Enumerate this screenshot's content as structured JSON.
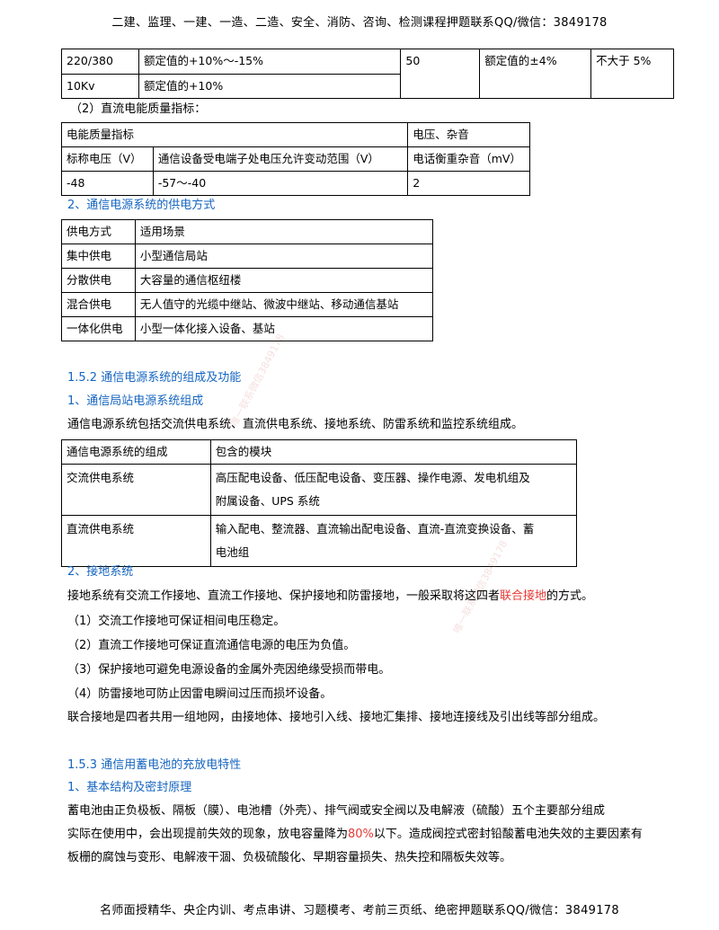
{
  "header": "二建、监理、一建、一造、二造、安全、消防、咨询、检测课程押题联系QQ/微信：3849178",
  "footer": "名师面授精华、央企内训、考点串讲、习题模考、考前三页纸、绝密押题联系QQ/微信：3849178",
  "table_voltage": {
    "rows": [
      [
        "220/380",
        "额定值的+10%～-15%"
      ],
      [
        "10Kv",
        "额定值的+10%"
      ]
    ],
    "freq": "50",
    "freq_range": "额定值的±4%",
    "distortion": "不大于 5%"
  },
  "dc_quality_title": "（2）直流电能质量指标：",
  "table_dc": {
    "header_left": "电能质量指标",
    "header_right": "电压、杂音",
    "row1": [
      "标称电压（V）",
      "通信设备受电端子处电压允许变动范围（V）",
      "电话衡重杂音（mV）"
    ],
    "row2": [
      "-48",
      "-57～-40",
      "2"
    ]
  },
  "section2_title": "2、通信电源系统的供电方式",
  "table_supply": {
    "header": [
      "供电方式",
      "适用场景"
    ],
    "rows": [
      [
        "集中供电",
        "小型通信局站"
      ],
      [
        "分散供电",
        "大容量的通信枢纽楼"
      ],
      [
        "混合供电",
        "无人值守的光缆中继站、微波中继站、移动通信基站"
      ],
      [
        "一体化供电",
        "小型一体化接入设备、基站"
      ]
    ]
  },
  "sec152": "1.5.2  通信电源系统的组成及功能",
  "sub1": "1、通信局站电源系统组成",
  "para1": "通信电源系统包括交流供电系统、直流供电系统、接地系统、防雷系统和监控系统组成。",
  "table_comp": {
    "header": [
      "通信电源系统的组成",
      "包含的模块"
    ],
    "rows": [
      [
        "交流供电系统",
        "高压配电设备、低压配电设备、变压器、操作电源、发电机组及",
        "附属设备、UPS 系统"
      ],
      [
        "直流供电系统",
        "输入配电、整流器、直流输出配电设备、直流-直流变换设备、蓄",
        "电池组"
      ]
    ]
  },
  "sub2": "2、接地系统",
  "ground": {
    "intro_a": "接地系统有交流工作接地、直流工作接地、保护接地和防雷接地，一般采取将这四者",
    "intro_red": "联合接地",
    "intro_b": "的方式。",
    "items": [
      "（1）交流工作接地可保证相间电压稳定。",
      "（2）直流工作接地可保证直流通信电源的电压为负值。",
      "（3）保护接地可避免电源设备的金属外壳因绝缘受损而带电。",
      "（4）防雷接地可防止因雷电瞬间过压而损坏设备。"
    ],
    "summary": "联合接地是四者共用一组地网，由接地体、接地引入线、接地汇集排、接地连接线及引出线等部分组成。"
  },
  "sec153": "1.5.3  通信用蓄电池的充放电特性",
  "sub3": "1、基本结构及密封原理",
  "battery": {
    "line1": "蓄电池由正负极板、隔板（膜）、电池槽（外壳）、排气阀或安全阀以及电解液（硫酸）五个主要部分组成",
    "line2a": "实际在使用中，会出现提前失效的现象，放电容量降为",
    "line2red": "80%",
    "line2b": "以下。造成阀控式密封铅酸蓄电池失效的主要因素有",
    "line3": "板栅的腐蚀与变形、电解液干涸、负极硫酸化、早期容量损失、热失控和隔板失效等。"
  },
  "watermarks": [
    "唯一联系微信3849178",
    "唯一联系微信3849178"
  ]
}
